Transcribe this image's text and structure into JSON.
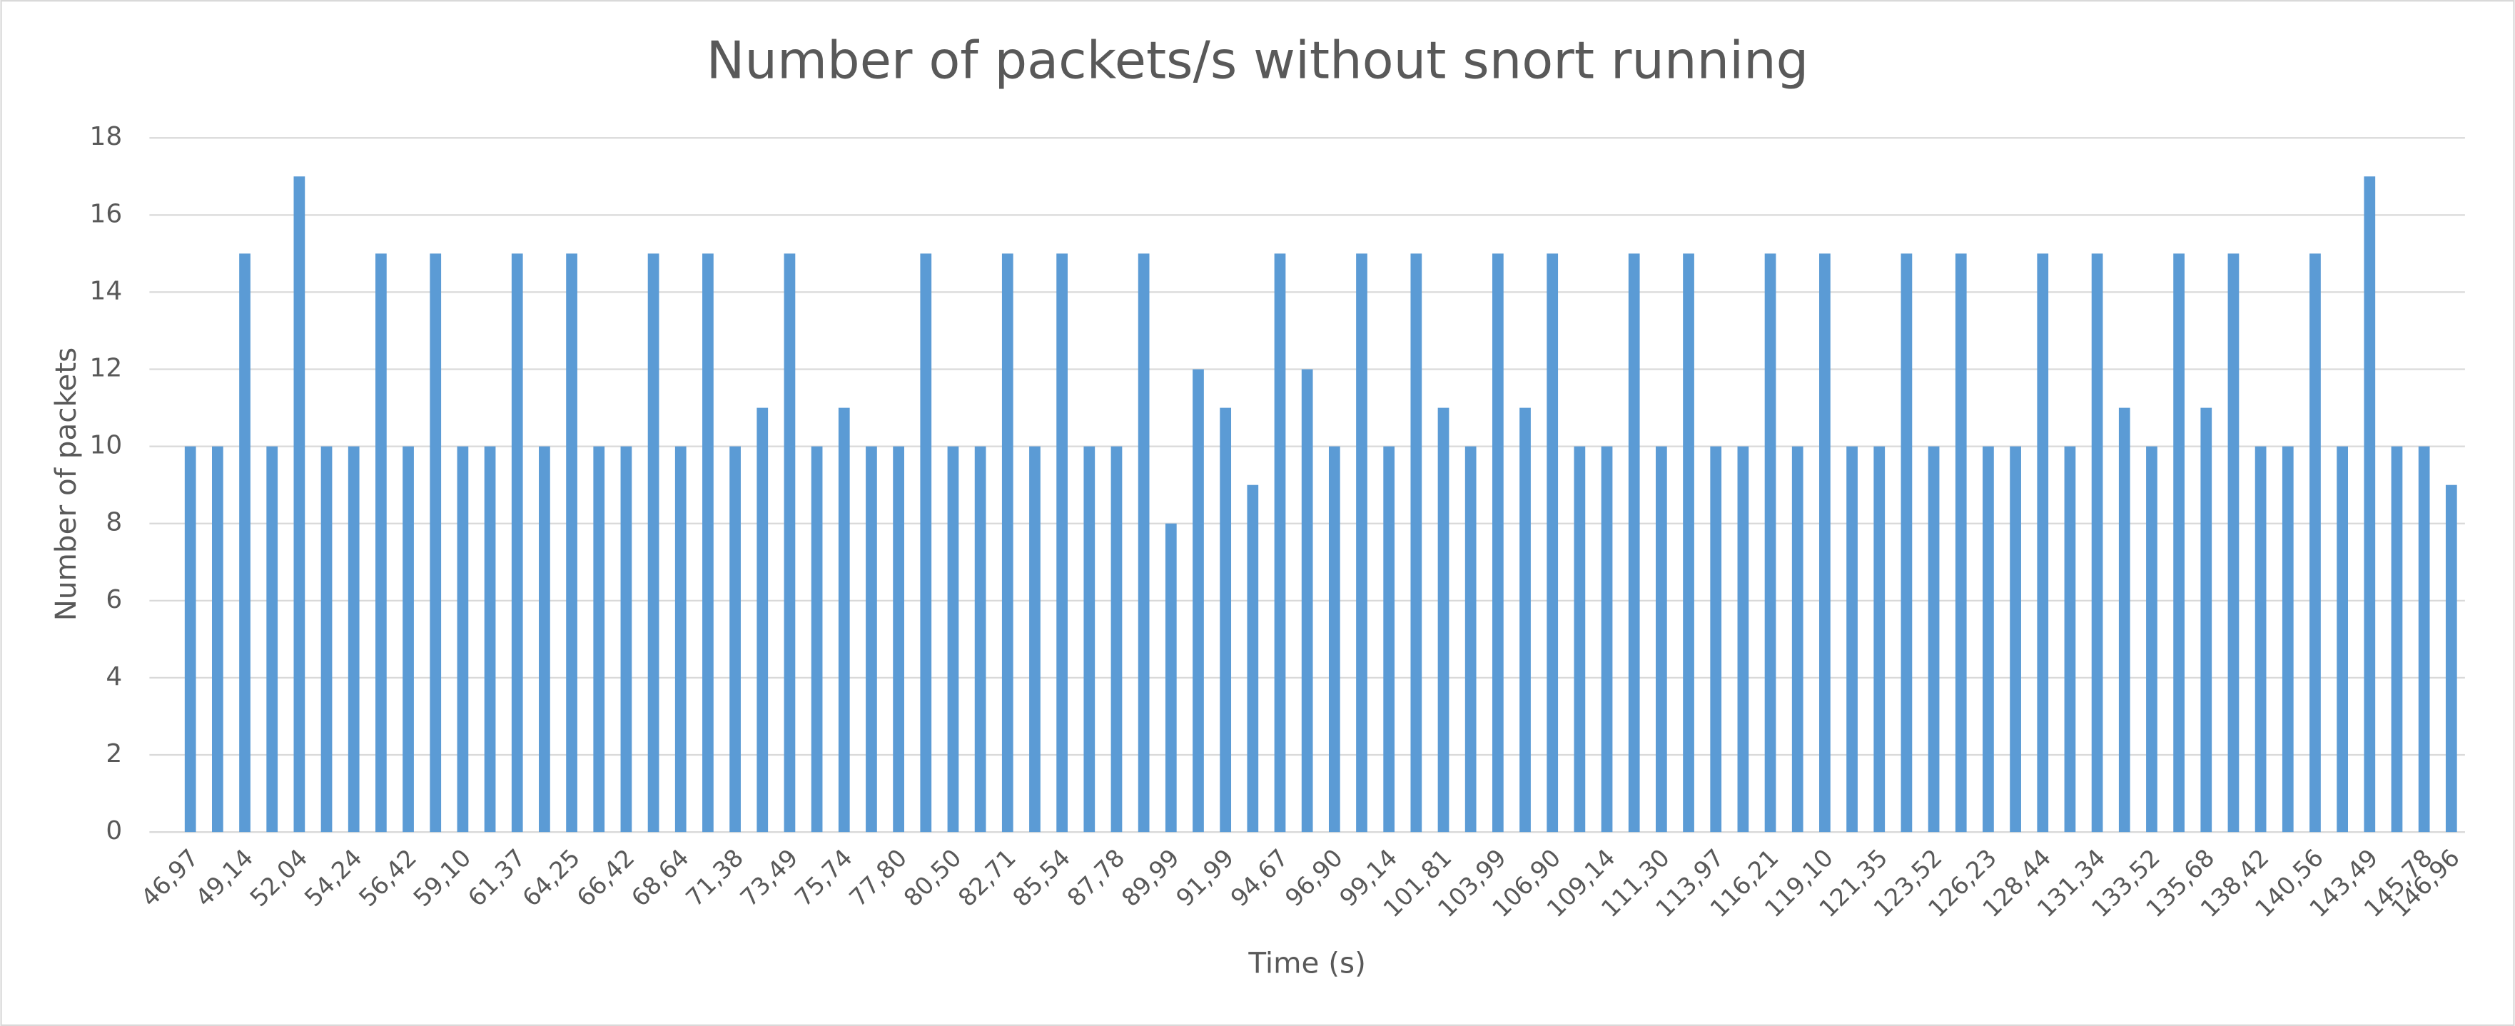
{
  "chart_data": {
    "type": "bar",
    "title": "Number of packets/s without snort running",
    "x_label": "Time (s)",
    "y_label": "Number of packets",
    "categories": [
      "46,97",
      null,
      "49,14",
      null,
      "52,04",
      null,
      "54,24",
      null,
      "56,42",
      null,
      "59,10",
      null,
      "61,37",
      null,
      "64,25",
      null,
      "66,42",
      null,
      "68,64",
      null,
      "71,38",
      null,
      "73,49",
      null,
      "75,74",
      null,
      "77,80",
      null,
      "80,50",
      null,
      "82,71",
      null,
      "85,54",
      null,
      "87,78",
      null,
      "89,99",
      null,
      "91,99",
      null,
      "94,67",
      null,
      "96,90",
      null,
      "99,14",
      null,
      "101,81",
      null,
      "103,99",
      null,
      "106,90",
      null,
      "109,14",
      null,
      "111,30",
      null,
      "113,97",
      null,
      "116,21",
      null,
      "119,10",
      null,
      "121,35",
      null,
      "123,52",
      null,
      "126,23",
      null,
      "128,44",
      null,
      "131,34",
      null,
      "133,52",
      null,
      "135,68",
      null,
      "138,42",
      null,
      "140,56",
      null,
      "143,49",
      null,
      "145,78",
      "146,96"
    ],
    "values": [
      10,
      10,
      15,
      10,
      17,
      10,
      10,
      15,
      10,
      15,
      10,
      10,
      15,
      10,
      15,
      10,
      10,
      15,
      10,
      15,
      10,
      11,
      15,
      10,
      11,
      10,
      10,
      15,
      10,
      10,
      15,
      10,
      15,
      10,
      10,
      15,
      8,
      12,
      11,
      9,
      15,
      12,
      10,
      15,
      10,
      15,
      11,
      10,
      15,
      11,
      15,
      10,
      10,
      15,
      10,
      15,
      10,
      10,
      15,
      10,
      15,
      10,
      10,
      15,
      10,
      15,
      10,
      10,
      15,
      10,
      15,
      11,
      10,
      15,
      11,
      15,
      10,
      10,
      15,
      10,
      17,
      10,
      10,
      9
    ],
    "color": "#5b9bd5",
    "ylim": [
      0,
      18
    ],
    "yticks": [
      0,
      2,
      4,
      6,
      8,
      10,
      12,
      14,
      16,
      18
    ],
    "grid": true
  }
}
